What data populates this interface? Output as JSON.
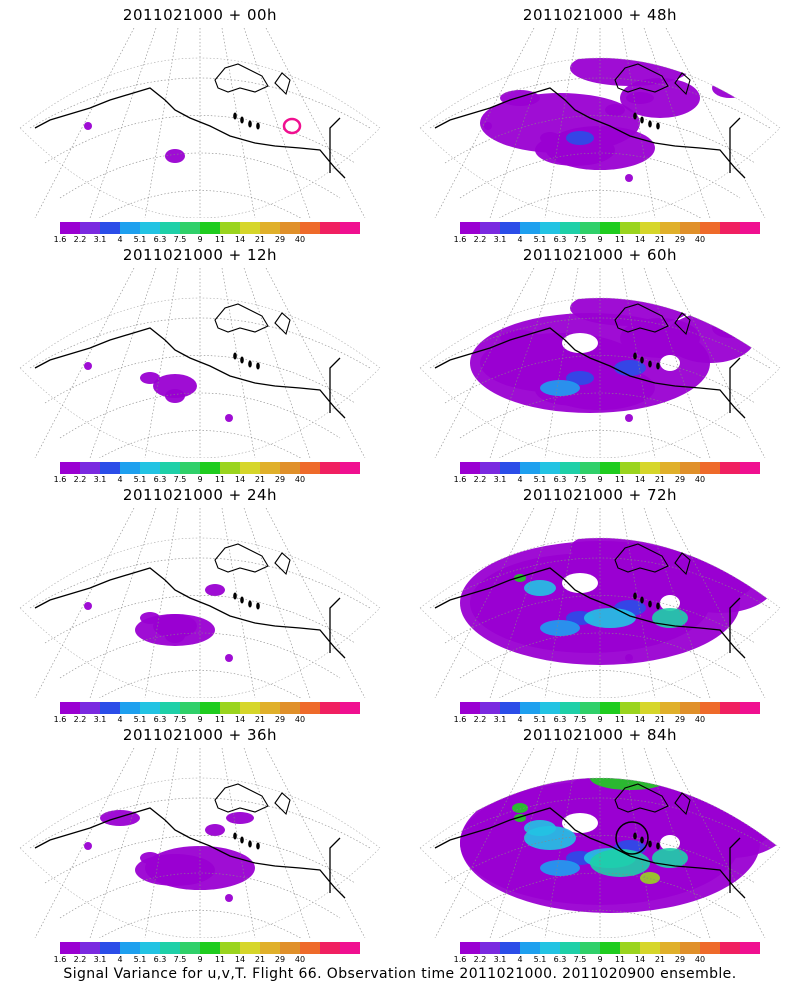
{
  "panels": [
    {
      "title": "2011021000 + 00h",
      "level": 0
    },
    {
      "title": "2011021000 + 48h",
      "level": 4
    },
    {
      "title": "2011021000 + 12h",
      "level": 1
    },
    {
      "title": "2011021000 + 60h",
      "level": 5
    },
    {
      "title": "2011021000 + 24h",
      "level": 2
    },
    {
      "title": "2011021000 + 72h",
      "level": 6
    },
    {
      "title": "2011021000 + 36h",
      "level": 3
    },
    {
      "title": "2011021000 + 84h",
      "level": 7
    }
  ],
  "colorbar": {
    "labels": [
      "1.6",
      "2.2",
      "3.1",
      "4",
      "5.1",
      "6.3",
      "7.5",
      "9",
      "11",
      "14",
      "21",
      "29",
      "40"
    ],
    "colors": [
      "#9a00d2",
      "#7a2ae0",
      "#2a4de8",
      "#1ea0ef",
      "#22c3e3",
      "#1ed0a8",
      "#2fd06a",
      "#1fcc1f",
      "#9ad41e",
      "#d6d62a",
      "#e0b02a",
      "#e0902a",
      "#ee6a2a",
      "#f02060",
      "#f01090"
    ]
  },
  "footer": "Signal Variance for u,v,T. Flight 66. Observation time 2011021000. 2011020900 ensemble."
}
